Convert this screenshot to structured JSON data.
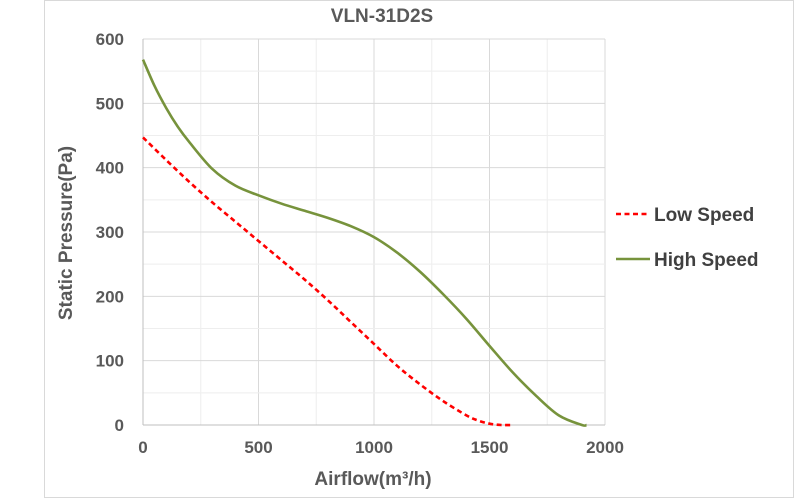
{
  "chart_data": {
    "type": "line",
    "title": "VLN-31D2S",
    "xlabel": "Airflow(m³/h)",
    "ylabel": "Static Pressure(Pa)",
    "xlim": [
      0,
      2000
    ],
    "ylim": [
      0,
      600
    ],
    "xticks": [
      0,
      500,
      1000,
      1500,
      2000
    ],
    "yticks": [
      0,
      100,
      200,
      300,
      400,
      500,
      600
    ],
    "grid": true,
    "legend_position": "right",
    "series": [
      {
        "name": "Low Speed",
        "color": "#ff0000",
        "style": "dashed",
        "x": [
          0,
          100,
          200,
          300,
          400,
          500,
          600,
          700,
          800,
          900,
          1000,
          1100,
          1200,
          1300,
          1400,
          1450,
          1500,
          1550,
          1600
        ],
        "y": [
          447,
          412,
          378,
          346,
          316,
          286,
          256,
          226,
          194,
          160,
          126,
          92,
          63,
          37,
          15,
          7,
          2,
          0,
          0
        ]
      },
      {
        "name": "High Speed",
        "color": "#77933c",
        "style": "solid",
        "x": [
          0,
          50,
          100,
          150,
          200,
          300,
          400,
          500,
          600,
          700,
          800,
          900,
          1000,
          1100,
          1200,
          1300,
          1400,
          1500,
          1600,
          1700,
          1800,
          1900,
          1920
        ],
        "y": [
          568,
          527,
          493,
          464,
          440,
          398,
          372,
          357,
          344,
          333,
          322,
          309,
          292,
          268,
          238,
          203,
          165,
          123,
          82,
          46,
          15,
          0,
          0
        ]
      }
    ]
  }
}
